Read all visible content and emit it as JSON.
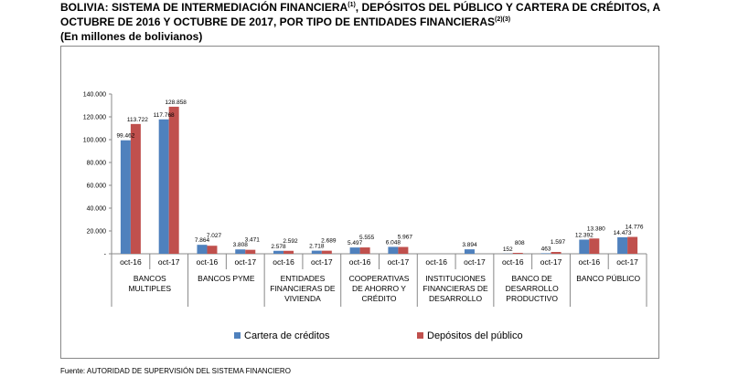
{
  "header": {
    "title_line1": "BOLIVIA: SISTEMA DE INTERMEDIACIÓN FINANCIERA",
    "title_sup1": "(1)",
    "title_line1_rest": ", DEPÓSITOS DEL PÚBLICO Y CARTERA DE CRÉDITOS, A",
    "title_line2": "OCTUBRE DE 2016 Y OCTUBRE DE 2017, POR TIPO DE ENTIDADES FINANCIERAS",
    "title_sup2": "(2)(3)",
    "subtitle": "(En millones de bolivianos)"
  },
  "footer": {
    "source": "Fuente: AUTORIDAD DE SUPERVISIÓN DEL SISTEMA FINANCIERO"
  },
  "chart_data": {
    "type": "bar",
    "ylim": [
      0,
      140000
    ],
    "yticks": [
      {
        "value": 0,
        "label": "-"
      },
      {
        "value": 20000,
        "label": "20.000"
      },
      {
        "value": 40000,
        "label": "40.000"
      },
      {
        "value": 60000,
        "label": "60.000"
      },
      {
        "value": 80000,
        "label": "80.000"
      },
      {
        "value": 100000,
        "label": "100.000"
      },
      {
        "value": 120000,
        "label": "120.000"
      },
      {
        "value": 140000,
        "label": "140.000"
      }
    ],
    "groups": [
      {
        "name_lines": [
          "BANCOS",
          "MULTIPLES"
        ],
        "periods": [
          {
            "label": "oct-16",
            "cartera": 99462,
            "cartera_label": "99.462",
            "depositos": 113722,
            "depositos_label": "113.722"
          },
          {
            "label": "oct-17",
            "cartera": 117768,
            "cartera_label": "117.768",
            "depositos": 128858,
            "depositos_label": "128.858"
          }
        ]
      },
      {
        "name_lines": [
          "BANCOS PYME"
        ],
        "periods": [
          {
            "label": "oct-16",
            "cartera": 7864,
            "cartera_label": "7.864",
            "depositos": 7027,
            "depositos_label": "7.027"
          },
          {
            "label": "oct-17",
            "cartera": 3808,
            "cartera_label": "3.808",
            "depositos": 3471,
            "depositos_label": "3.471"
          }
        ]
      },
      {
        "name_lines": [
          "ENTIDADES",
          "FINANCIERAS DE",
          "VIVIENDA"
        ],
        "periods": [
          {
            "label": "oct-16",
            "cartera": 2578,
            "cartera_label": "2.578",
            "depositos": 2592,
            "depositos_label": "2.592"
          },
          {
            "label": "oct-17",
            "cartera": 2718,
            "cartera_label": "2.718",
            "depositos": 2689,
            "depositos_label": "2.689"
          }
        ]
      },
      {
        "name_lines": [
          "COOPERATIVAS",
          "DE AHORRO Y",
          "CRÉDITO"
        ],
        "periods": [
          {
            "label": "oct-16",
            "cartera": 5497,
            "cartera_label": "5.497",
            "depositos": 5555,
            "depositos_label": "5.555"
          },
          {
            "label": "oct-17",
            "cartera": 6048,
            "cartera_label": "6.048",
            "depositos": 5967,
            "depositos_label": "5.967"
          }
        ]
      },
      {
        "name_lines": [
          "INSTITUCIONES",
          "FINANCIERAS DE",
          "DESARROLLO"
        ],
        "periods": [
          {
            "label": "oct-16",
            "cartera": 0,
            "cartera_label": "",
            "depositos": 0,
            "depositos_label": ""
          },
          {
            "label": "oct-17",
            "cartera": 3894,
            "cartera_label": "3.894",
            "depositos": 0,
            "depositos_label": ""
          }
        ]
      },
      {
        "name_lines": [
          "BANCO DE",
          "DESARROLLO",
          "PRODUCTIVO"
        ],
        "periods": [
          {
            "label": "oct-16",
            "cartera": 152,
            "cartera_label": "152",
            "depositos": 808,
            "depositos_label": "808"
          },
          {
            "label": "oct-17",
            "cartera": 463,
            "cartera_label": "463",
            "depositos": 1597,
            "depositos_label": "1.597"
          }
        ]
      },
      {
        "name_lines": [
          "BANCO PÚBLICO"
        ],
        "periods": [
          {
            "label": "oct-16",
            "cartera": 12392,
            "cartera_label": "12.392",
            "depositos": 13380,
            "depositos_label": "13.380"
          },
          {
            "label": "oct-17",
            "cartera": 14473,
            "cartera_label": "14.473",
            "depositos": 14776,
            "depositos_label": "14.776"
          }
        ]
      }
    ],
    "series": [
      {
        "key": "cartera",
        "name": "Cartera de créditos",
        "color": "#4f81bd"
      },
      {
        "key": "depositos",
        "name": "Depósitos del público",
        "color": "#c0504d"
      }
    ]
  }
}
